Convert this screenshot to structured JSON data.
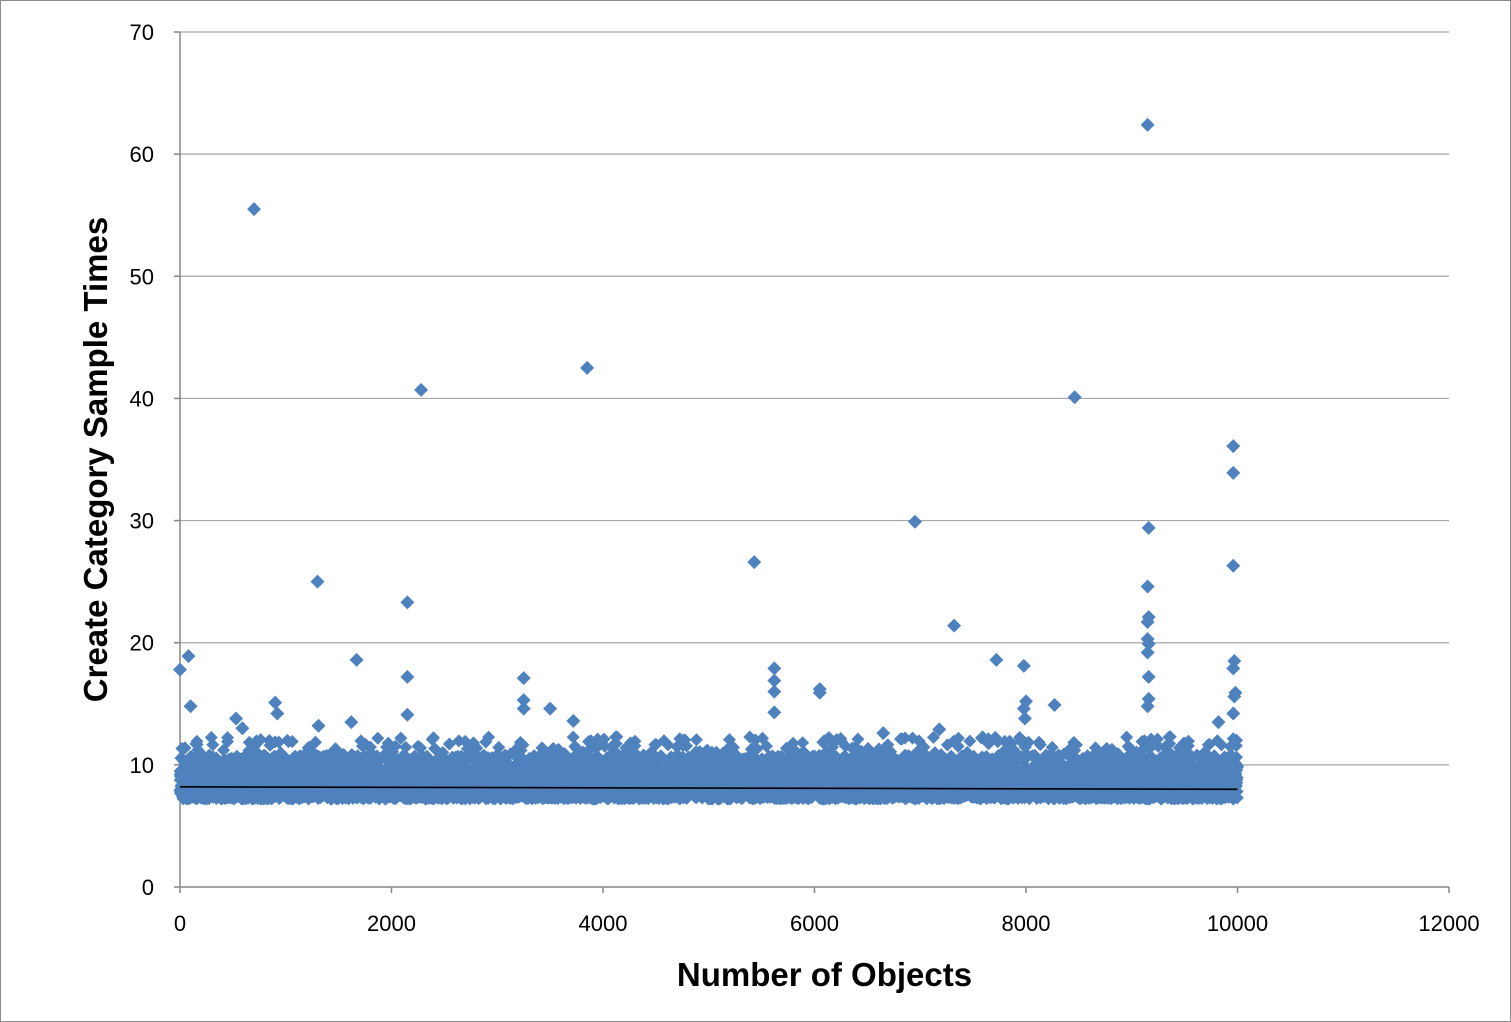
{
  "chart_data": {
    "type": "scatter",
    "title": "",
    "xlabel": "Number of Objects",
    "ylabel": "Create Category Sample Times",
    "xlim": [
      0,
      12000
    ],
    "ylim": [
      0,
      70
    ],
    "x_ticks": [
      0,
      2000,
      4000,
      6000,
      8000,
      10000,
      12000
    ],
    "y_ticks": [
      0,
      10,
      20,
      30,
      40,
      50,
      60,
      70
    ],
    "x_tick_labels": [
      "0",
      "2000",
      "4000",
      "6000",
      "8000",
      "10000",
      "12000"
    ],
    "y_tick_labels": [
      "0",
      "10",
      "20",
      "30",
      "40",
      "50",
      "60",
      "70"
    ],
    "grid": "horizontal",
    "legend": "none",
    "marker": "diamond",
    "colors": {
      "points": "#4f81bd",
      "trendline": "#000000",
      "grid": "#a6a6a6",
      "axis": "#868686"
    },
    "dense_band": {
      "x_range": [
        0,
        10000
      ],
      "typical_range": [
        7.0,
        10.5
      ],
      "description_count": 10000
    },
    "trendline": {
      "type": "linear",
      "points": [
        [
          0,
          8.2
        ],
        [
          10000,
          8.0
        ]
      ]
    },
    "outliers": [
      [
        0,
        17.8
      ],
      [
        80,
        18.9
      ],
      [
        100,
        14.8
      ],
      [
        700,
        55.5
      ],
      [
        530,
        13.8
      ],
      [
        590,
        13.0
      ],
      [
        900,
        15.1
      ],
      [
        920,
        14.2
      ],
      [
        1300,
        25.0
      ],
      [
        1310,
        13.2
      ],
      [
        1620,
        13.5
      ],
      [
        1670,
        18.6
      ],
      [
        2150,
        23.3
      ],
      [
        2150,
        17.2
      ],
      [
        2150,
        14.1
      ],
      [
        2280,
        40.7
      ],
      [
        3250,
        17.1
      ],
      [
        3250,
        15.3
      ],
      [
        3250,
        14.6
      ],
      [
        3500,
        14.6
      ],
      [
        3720,
        13.6
      ],
      [
        3850,
        42.5
      ],
      [
        5430,
        26.6
      ],
      [
        5620,
        17.9
      ],
      [
        5620,
        16.9
      ],
      [
        5620,
        16.0
      ],
      [
        5620,
        14.3
      ],
      [
        6050,
        16.2
      ],
      [
        6050,
        15.9
      ],
      [
        6650,
        12.6
      ],
      [
        6950,
        29.9
      ],
      [
        7180,
        12.9
      ],
      [
        7320,
        21.4
      ],
      [
        7720,
        18.6
      ],
      [
        7980,
        18.1
      ],
      [
        8000,
        15.2
      ],
      [
        7980,
        14.6
      ],
      [
        7990,
        13.8
      ],
      [
        8270,
        14.9
      ],
      [
        8460,
        40.1
      ],
      [
        9150,
        62.4
      ],
      [
        9160,
        29.4
      ],
      [
        9150,
        24.6
      ],
      [
        9160,
        22.1
      ],
      [
        9150,
        21.7
      ],
      [
        9150,
        20.3
      ],
      [
        9160,
        19.9
      ],
      [
        9150,
        19.2
      ],
      [
        9160,
        17.2
      ],
      [
        9160,
        15.4
      ],
      [
        9150,
        14.8
      ],
      [
        9820,
        13.5
      ],
      [
        9960,
        36.1
      ],
      [
        9960,
        33.9
      ],
      [
        9960,
        26.3
      ],
      [
        9970,
        18.5
      ],
      [
        9960,
        17.9
      ],
      [
        9980,
        15.9
      ],
      [
        9970,
        15.6
      ],
      [
        9960,
        14.2
      ]
    ]
  }
}
